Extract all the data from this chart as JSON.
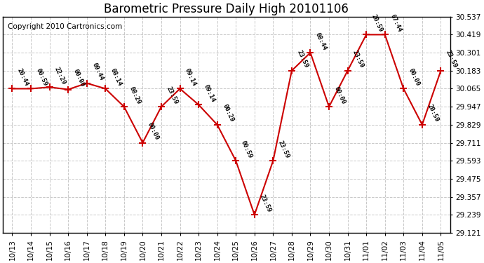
{
  "title": "Barometric Pressure Daily High 20101106",
  "copyright": "Copyright 2010 Cartronics.com",
  "background_color": "#ffffff",
  "plot_bg_color": "#ffffff",
  "grid_color": "#c8c8c8",
  "line_color": "#cc0000",
  "marker_color": "#cc0000",
  "text_color": "#000000",
  "x_labels": [
    "10/13",
    "10/14",
    "10/15",
    "10/16",
    "10/17",
    "10/18",
    "10/19",
    "10/20",
    "10/21",
    "10/22",
    "10/23",
    "10/24",
    "10/25",
    "10/26",
    "10/27",
    "10/28",
    "10/29",
    "10/30",
    "10/31",
    "11/01",
    "11/02",
    "11/03",
    "11/04",
    "11/05"
  ],
  "x_values": [
    0,
    1,
    2,
    3,
    4,
    5,
    6,
    7,
    8,
    9,
    10,
    11,
    12,
    13,
    14,
    15,
    16,
    17,
    18,
    19,
    20,
    21,
    22,
    23
  ],
  "y_values": [
    30.065,
    30.065,
    30.075,
    30.06,
    30.101,
    30.065,
    29.947,
    29.711,
    29.947,
    30.065,
    29.96,
    29.829,
    29.593,
    29.239,
    29.593,
    30.183,
    30.301,
    29.947,
    30.183,
    30.419,
    30.419,
    30.065,
    29.829,
    30.183
  ],
  "annotations": [
    "20:44",
    "00:59",
    "22:29",
    "00:00",
    "09:44",
    "08:14",
    "08:29",
    "00:00",
    "23:59",
    "09:14",
    "09:14",
    "00:29",
    "00:59",
    "23:59",
    "23:59",
    "23:59",
    "08:44",
    "00:00",
    "23:59",
    "20:59",
    "07:44",
    "00:00",
    "20:59",
    "23:59"
  ],
  "ylim": [
    29.121,
    30.537
  ],
  "yticks": [
    29.121,
    29.239,
    29.357,
    29.475,
    29.593,
    29.711,
    29.829,
    29.947,
    30.065,
    30.183,
    30.301,
    30.419,
    30.537
  ],
  "title_fontsize": 12,
  "tick_fontsize": 7.5,
  "annotation_fontsize": 6.5,
  "copyright_fontsize": 7.5
}
